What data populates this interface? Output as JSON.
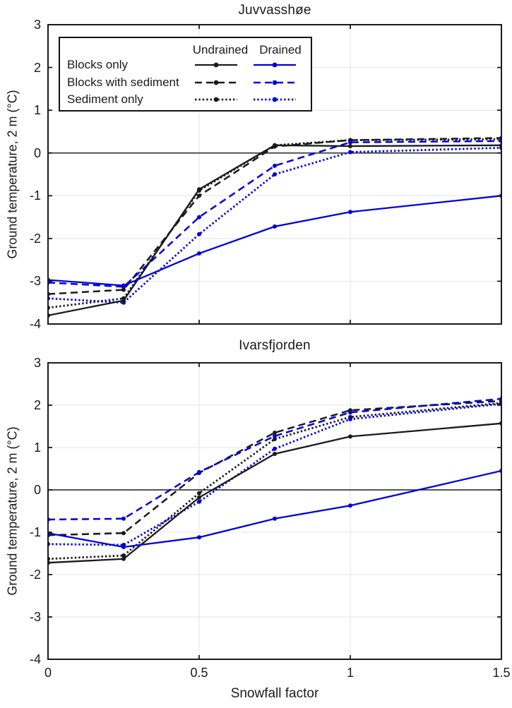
{
  "figure": {
    "background": "#ffffff"
  },
  "colors": {
    "undrained": "#1a1a1a",
    "drained": "#0000dd",
    "grid": "#e4e4e4",
    "zero_line": "#3d3d3d",
    "frame": "#1a1a1a"
  },
  "xlabel": "Snowfall factor",
  "ylabel": "Ground temperature, 2 m (°C)",
  "legend": {
    "headers": [
      "Undrained",
      "Drained"
    ],
    "rows": [
      "Blocks only",
      "Blocks with sediment",
      "Sediment only"
    ],
    "row_styles": [
      "solid",
      "dashed",
      "dotted"
    ]
  },
  "chart_data": [
    {
      "type": "line",
      "title": "Juvvasshøe",
      "xlabel": "",
      "ylabel": "Ground temperature, 2 m (°C)",
      "x": [
        0,
        0.25,
        0.5,
        0.75,
        1,
        1.5
      ],
      "xlim": [
        0,
        1.5
      ],
      "ylim": [
        -4,
        3
      ],
      "xticks": [
        0,
        0.5,
        1,
        1.5
      ],
      "yticks": [
        3,
        2,
        1,
        0,
        -1,
        -2,
        -3,
        -4
      ],
      "grid": true,
      "zero_line": true,
      "series": [
        {
          "label": "Sediment only",
          "drainage": "Undrained",
          "style": "dotted",
          "values": [
            -3.62,
            -3.4,
            -0.88,
            0.18,
            0.3,
            0.32
          ]
        },
        {
          "label": "Sediment only",
          "drainage": "Drained",
          "style": "dotted",
          "values": [
            -3.4,
            -3.5,
            -1.9,
            -0.5,
            0.02,
            0.12
          ]
        },
        {
          "label": "Blocks with sediment",
          "drainage": "Undrained",
          "style": "dashed",
          "values": [
            -3.3,
            -3.2,
            -1.0,
            0.15,
            0.3,
            0.35
          ]
        },
        {
          "label": "Blocks with sediment",
          "drainage": "Drained",
          "style": "dashed",
          "values": [
            -3.03,
            -3.13,
            -1.5,
            -0.3,
            0.25,
            0.28
          ]
        },
        {
          "label": "Blocks only",
          "drainage": "Undrained",
          "style": "solid",
          "values": [
            -3.8,
            -3.45,
            -0.85,
            0.18,
            0.16,
            0.18
          ]
        },
        {
          "label": "Blocks only",
          "drainage": "Drained",
          "style": "solid",
          "values": [
            -2.97,
            -3.1,
            -2.35,
            -1.72,
            -1.38,
            -1.0
          ]
        }
      ]
    },
    {
      "type": "line",
      "title": "Ivarsfjorden",
      "xlabel": "Snowfall factor",
      "ylabel": "Ground temperature, 2 m (°C)",
      "x": [
        0,
        0.25,
        0.5,
        0.75,
        1,
        1.5
      ],
      "xlim": [
        0,
        1.5
      ],
      "ylim": [
        -4,
        3
      ],
      "xticks": [
        0,
        0.5,
        1,
        1.5
      ],
      "yticks": [
        3,
        2,
        1,
        0,
        -1,
        -2,
        -3,
        -4
      ],
      "grid": true,
      "zero_line": true,
      "series": [
        {
          "label": "Sediment only",
          "drainage": "Undrained",
          "style": "dotted",
          "values": [
            -1.63,
            -1.55,
            -0.08,
            1.2,
            1.72,
            2.05
          ]
        },
        {
          "label": "Sediment only",
          "drainage": "Drained",
          "style": "dotted",
          "values": [
            -1.28,
            -1.3,
            -0.28,
            0.97,
            1.67,
            2.03
          ]
        },
        {
          "label": "Blocks with sediment",
          "drainage": "Undrained",
          "style": "dashed",
          "values": [
            -1.07,
            -1.02,
            0.4,
            1.35,
            1.88,
            2.1
          ]
        },
        {
          "label": "Blocks with sediment",
          "drainage": "Drained",
          "style": "dashed",
          "values": [
            -0.7,
            -0.68,
            0.42,
            1.27,
            1.83,
            2.15
          ]
        },
        {
          "label": "Blocks only",
          "drainage": "Undrained",
          "style": "solid",
          "values": [
            -1.72,
            -1.63,
            -0.18,
            0.85,
            1.26,
            1.57
          ]
        },
        {
          "label": "Blocks only",
          "drainage": "Drained",
          "style": "solid",
          "values": [
            -1.02,
            -1.35,
            -1.12,
            -0.68,
            -0.37,
            0.45
          ]
        }
      ]
    }
  ]
}
